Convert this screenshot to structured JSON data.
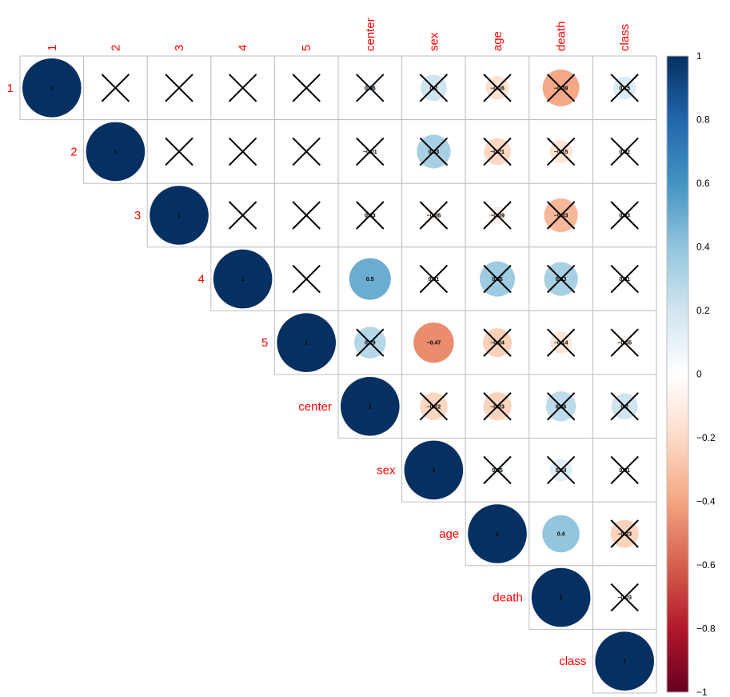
{
  "chart_data": {
    "type": "heatmap",
    "variables": [
      "1",
      "2",
      "3",
      "4",
      "5",
      "center",
      "sex",
      "age",
      "death",
      "class"
    ],
    "triangle": "upper",
    "glyph": "circle",
    "insignificant_marker": "cross",
    "matrix": [
      [
        1,
        null,
        null,
        null,
        null,
        0.06,
        0.2,
        -0.16,
        -0.39,
        0.15
      ],
      [
        null,
        1,
        null,
        null,
        null,
        -0.01,
        0.33,
        -0.21,
        -0.15,
        0.02
      ],
      [
        null,
        null,
        1,
        null,
        null,
        0.03,
        -0.06,
        -0.09,
        -0.33,
        0.03
      ],
      [
        null,
        null,
        null,
        1,
        null,
        0.5,
        0.01,
        0.36,
        0.33,
        0.01
      ],
      [
        null,
        null,
        null,
        null,
        1,
        0.29,
        -0.47,
        -0.24,
        -0.14,
        -0.05
      ],
      [
        null,
        null,
        null,
        null,
        null,
        1,
        -0.22,
        -0.23,
        0.26,
        0.2
      ],
      [
        null,
        null,
        null,
        null,
        null,
        null,
        1,
        0.05,
        0.14,
        0.01
      ],
      [
        null,
        null,
        null,
        null,
        null,
        null,
        null,
        1,
        0.4,
        -0.23
      ],
      [
        null,
        null,
        null,
        null,
        null,
        null,
        null,
        null,
        1,
        -0.03
      ],
      [
        null,
        null,
        null,
        null,
        null,
        null,
        null,
        null,
        null,
        1
      ]
    ],
    "value_labels": [
      [
        "1",
        "",
        "",
        "",
        "",
        "0.06",
        "0.2",
        "−0.16",
        "−0.39",
        "0.15"
      ],
      [
        "",
        "1",
        "",
        "",
        "",
        "−0.01",
        "0.33",
        "−0.21",
        "−0.15",
        "0.02"
      ],
      [
        "",
        "",
        "1",
        "",
        "",
        "0.03",
        "−0.06",
        "−0.09",
        "−0.33",
        "0.03"
      ],
      [
        "",
        "",
        "",
        "1",
        "",
        "0.5",
        "0.01",
        "0.36",
        "0.33",
        "0.01"
      ],
      [
        "",
        "",
        "",
        "",
        "1",
        "0.29",
        "−0.47",
        "−0.24",
        "−0.14",
        "−0.05"
      ],
      [
        "",
        "",
        "",
        "",
        "",
        "1",
        "−0.22",
        "−0.23",
        "0.26",
        "0.2"
      ],
      [
        "",
        "",
        "",
        "",
        "",
        "",
        "1",
        "0.05",
        "0.14",
        "0.01"
      ],
      [
        "",
        "",
        "",
        "",
        "",
        "",
        "",
        "1",
        "0.4",
        "−0.23"
      ],
      [
        "",
        "",
        "",
        "",
        "",
        "",
        "",
        "",
        "1",
        "−0.03"
      ],
      [
        "",
        "",
        "",
        "",
        "",
        "",
        "",
        "",
        "",
        "1"
      ]
    ],
    "insignificant": [
      [
        false,
        true,
        true,
        true,
        true,
        true,
        true,
        true,
        true,
        true
      ],
      [
        false,
        false,
        true,
        true,
        true,
        true,
        true,
        true,
        true,
        true
      ],
      [
        false,
        false,
        false,
        true,
        true,
        true,
        true,
        true,
        true,
        true
      ],
      [
        false,
        false,
        false,
        false,
        true,
        false,
        true,
        true,
        true,
        true
      ],
      [
        false,
        false,
        false,
        false,
        false,
        true,
        false,
        true,
        true,
        true
      ],
      [
        false,
        false,
        false,
        false,
        false,
        false,
        true,
        true,
        true,
        true
      ],
      [
        false,
        false,
        false,
        false,
        false,
        false,
        false,
        true,
        true,
        true
      ],
      [
        false,
        false,
        false,
        false,
        false,
        false,
        false,
        false,
        false,
        true
      ],
      [
        false,
        false,
        false,
        false,
        false,
        false,
        false,
        false,
        false,
        true
      ],
      [
        false,
        false,
        false,
        false,
        false,
        false,
        false,
        false,
        false,
        false
      ]
    ],
    "color_scale": {
      "range": [
        -1,
        1
      ],
      "ticks": [
        1,
        0.8,
        0.6,
        0.4,
        0.2,
        0,
        -0.2,
        -0.4,
        -0.6,
        -0.8,
        -1
      ],
      "tick_labels": [
        "1",
        "0.8",
        "0.6",
        "0.4",
        "0.2",
        "0",
        "−0.2",
        "−0.4",
        "−0.6",
        "−0.8",
        "−1"
      ],
      "stops": [
        "#67001F",
        "#B2182B",
        "#D6604D",
        "#F4A582",
        "#FDDBC7",
        "#FFFFFF",
        "#D1E5F0",
        "#92C5DE",
        "#4393C3",
        "#2166AC",
        "#053061"
      ]
    },
    "label_color": "#FF0000",
    "grid": true,
    "legend_placement": "right"
  }
}
